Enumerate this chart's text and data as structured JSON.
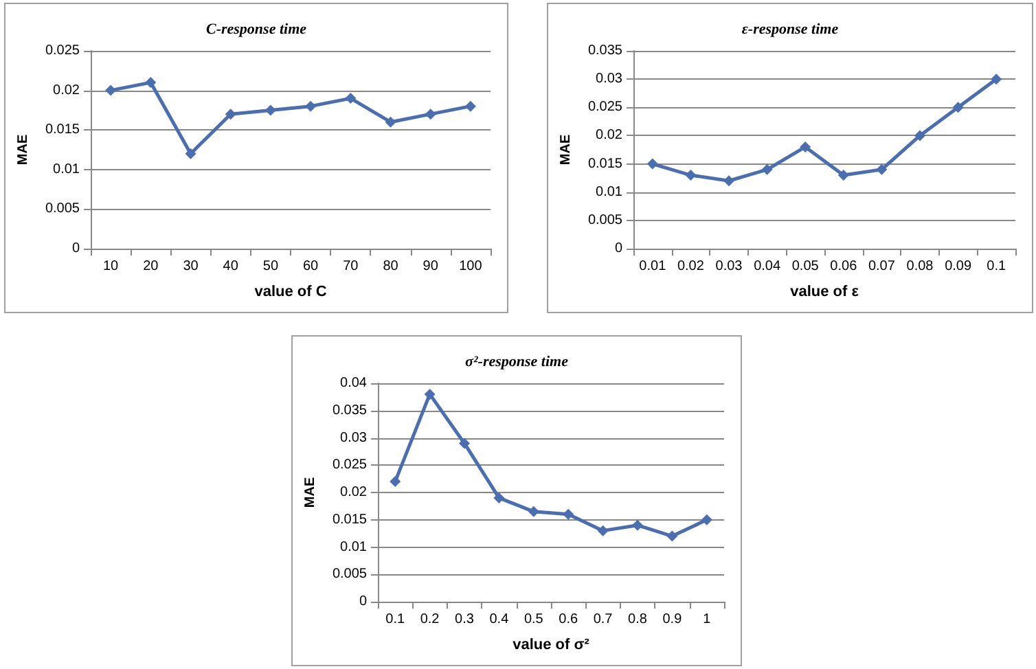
{
  "chart_data": [
    {
      "type": "line",
      "title": "C-response time",
      "xlabel": "value of C",
      "ylabel": "MAE",
      "categories": [
        "10",
        "20",
        "30",
        "40",
        "50",
        "60",
        "70",
        "80",
        "90",
        "100"
      ],
      "series": [
        {
          "color": "#4a6eb0",
          "values": [
            0.02,
            0.021,
            0.012,
            0.017,
            0.0175,
            0.018,
            0.019,
            0.016,
            0.017,
            0.018
          ]
        }
      ],
      "ylim": [
        0,
        0.025
      ],
      "yticks": [
        0,
        0.005,
        0.01,
        0.015,
        0.02,
        0.025
      ],
      "grid": "y",
      "marker": "diamond",
      "line_style": "solid"
    },
    {
      "type": "line",
      "title": "ε-response time",
      "xlabel": "value of ε",
      "ylabel": "MAE",
      "categories": [
        "0.01",
        "0.02",
        "0.03",
        "0.04",
        "0.05",
        "0.06",
        "0.07",
        "0.08",
        "0.09",
        "0.1"
      ],
      "series": [
        {
          "color": "#4a6eb0",
          "values": [
            0.015,
            0.013,
            0.012,
            0.014,
            0.018,
            0.013,
            0.014,
            0.02,
            0.025,
            0.03
          ]
        }
      ],
      "ylim": [
        0,
        0.035
      ],
      "yticks": [
        0,
        0.005,
        0.01,
        0.015,
        0.02,
        0.025,
        0.03,
        0.035
      ],
      "grid": "y",
      "marker": "diamond",
      "line_style": "solid"
    },
    {
      "type": "line",
      "title": "σ²-response time",
      "xlabel": "value of σ²",
      "ylabel": "MAE",
      "categories": [
        "0.1",
        "0.2",
        "0.3",
        "0.4",
        "0.5",
        "0.6",
        "0.7",
        "0.8",
        "0.9",
        "1"
      ],
      "series": [
        {
          "color": "#4a6eb0",
          "values": [
            0.022,
            0.038,
            0.029,
            0.019,
            0.0165,
            0.016,
            0.013,
            0.014,
            0.012,
            0.015
          ]
        }
      ],
      "ylim": [
        0,
        0.04
      ],
      "yticks": [
        0,
        0.005,
        0.01,
        0.015,
        0.02,
        0.025,
        0.03,
        0.035,
        0.04
      ],
      "grid": "y",
      "marker": "diamond",
      "line_style": "solid"
    }
  ]
}
